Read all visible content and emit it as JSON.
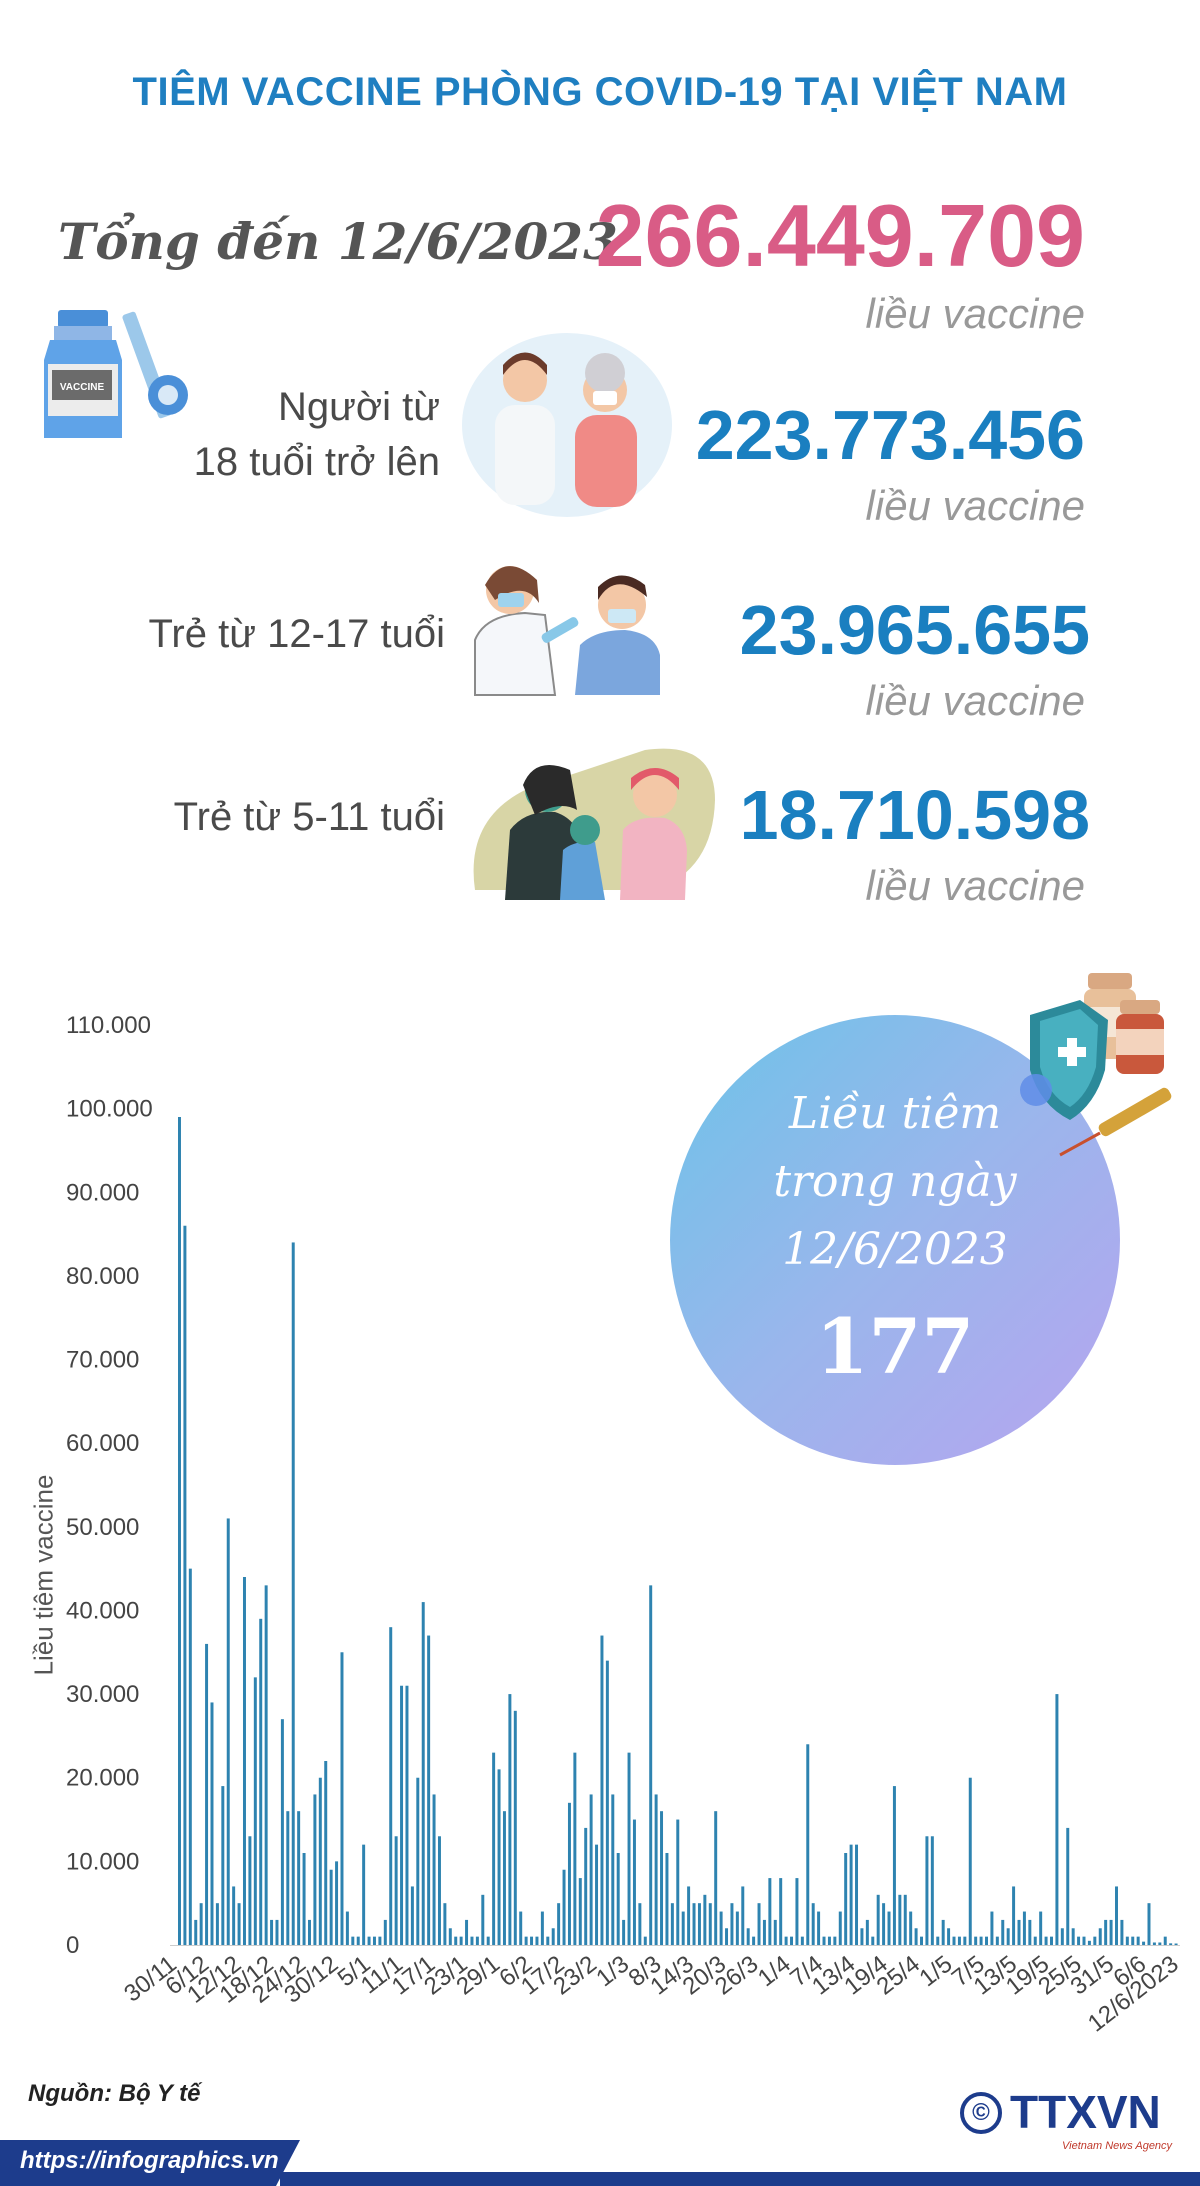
{
  "title": "TIÊM VACCINE PHÒNG COVID-19 TẠI VIỆT NAM",
  "total": {
    "label": "Tổng đến 12/6/2023",
    "value": "266.449.709",
    "unit": "liều vaccine"
  },
  "rows": [
    {
      "label_line1": "Người từ",
      "label_line2": "18 tuổi trở lên",
      "value": "223.773.456",
      "unit": "liều vaccine"
    },
    {
      "label": "Trẻ từ 12-17 tuổi",
      "value": "23.965.655",
      "unit": "liều vaccine"
    },
    {
      "label": "Trẻ từ 5-11 tuổi",
      "value": "18.710.598",
      "unit": "liều vaccine"
    }
  ],
  "daily": {
    "line1": "Liều tiêm",
    "line2": "trong ngày",
    "line3": "12/6/2023",
    "value": "177"
  },
  "chart_data": {
    "type": "bar",
    "title": "",
    "ylabel": "Liều tiêm vaccine",
    "xlabel": "",
    "ylim": [
      0,
      110000
    ],
    "y_ticks": [
      "0",
      "10.000",
      "20.000",
      "30.000",
      "40.000",
      "50.000",
      "60.000",
      "70.000",
      "80.000",
      "90.000",
      "100.000",
      "110.000"
    ],
    "color": "#2e83b0",
    "x_tick_labels": [
      "30/11",
      "6/12",
      "12/12",
      "18/12",
      "24/12",
      "30/12",
      "5/1",
      "11/1",
      "17/1",
      "23/1",
      "29/1",
      "6/2",
      "17/2",
      "23/2",
      "1/3",
      "8/3",
      "14/3",
      "20/3",
      "26/3",
      "1/4",
      "7/4",
      "13/4",
      "19/4",
      "25/4",
      "1/5",
      "7/5",
      "13/5",
      "19/5",
      "25/5",
      "31/5",
      "6/6",
      "12/6/2023"
    ],
    "values": [
      99000,
      86000,
      45000,
      3000,
      5000,
      36000,
      29000,
      5000,
      19000,
      51000,
      7000,
      5000,
      44000,
      13000,
      32000,
      39000,
      43000,
      3000,
      3000,
      27000,
      16000,
      84000,
      16000,
      11000,
      3000,
      18000,
      20000,
      22000,
      9000,
      10000,
      35000,
      4000,
      1000,
      1000,
      12000,
      1000,
      1000,
      1000,
      3000,
      38000,
      13000,
      31000,
      31000,
      7000,
      20000,
      41000,
      37000,
      18000,
      13000,
      5000,
      2000,
      1000,
      1000,
      3000,
      1000,
      1000,
      6000,
      1000,
      23000,
      21000,
      16000,
      30000,
      28000,
      4000,
      1000,
      1000,
      1000,
      4000,
      1000,
      2000,
      5000,
      9000,
      17000,
      23000,
      8000,
      14000,
      18000,
      12000,
      37000,
      34000,
      18000,
      11000,
      3000,
      23000,
      15000,
      5000,
      1000,
      43000,
      18000,
      16000,
      11000,
      5000,
      15000,
      4000,
      7000,
      5000,
      5000,
      6000,
      5000,
      16000,
      4000,
      2000,
      5000,
      4000,
      7000,
      2000,
      1000,
      5000,
      3000,
      8000,
      3000,
      8000,
      1000,
      1000,
      8000,
      1000,
      24000,
      5000,
      4000,
      1000,
      1000,
      1000,
      4000,
      11000,
      12000,
      12000,
      2000,
      3000,
      1000,
      6000,
      5000,
      4000,
      19000,
      6000,
      6000,
      4000,
      2000,
      1000,
      13000,
      13000,
      1000,
      3000,
      2000,
      1000,
      1000,
      1000,
      20000,
      1000,
      1000,
      1000,
      4000,
      1000,
      3000,
      2000,
      7000,
      3000,
      4000,
      3000,
      1000,
      4000,
      1000,
      1000,
      30000,
      2000,
      14000,
      2000,
      1000,
      1000,
      500,
      1000,
      2000,
      3000,
      3000,
      7000,
      3000,
      1000,
      1000,
      1000,
      400,
      5000,
      300,
      300,
      1000,
      200,
      177
    ]
  },
  "source": "Nguồn: Bộ Y tế",
  "url": "https://infographics.vn",
  "logo": "TTXVN",
  "logo_copyright": "©",
  "logo_sub": "Vietnam News Agency"
}
